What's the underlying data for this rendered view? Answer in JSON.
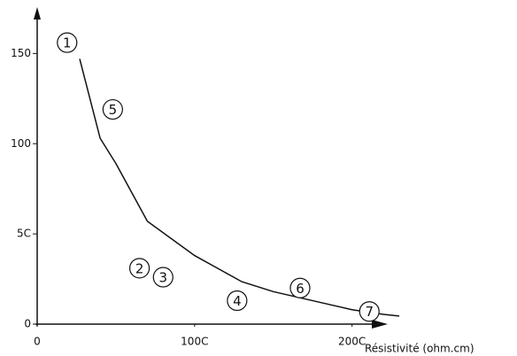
{
  "chart_data": {
    "type": "line",
    "x_label": "Résistivité (ohm.cm)",
    "xlim": [
      0,
      2300
    ],
    "ylim": [
      0,
      160
    ],
    "xticks": [
      0,
      {
        "value": 1000,
        "label": "100C"
      },
      {
        "value": 2000,
        "label": "200C"
      }
    ],
    "yticks": [
      0,
      {
        "value": 50,
        "label": "5C"
      },
      100,
      150
    ],
    "color": "#111111",
    "x": [
      270,
      400,
      500,
      700,
      1000,
      1300,
      1500,
      1800,
      2000,
      2200,
      2300
    ],
    "values": [
      147,
      103,
      89,
      57,
      38,
      23.5,
      18,
      12,
      8,
      5.4,
      4.5
    ],
    "points": [
      {
        "label": "1",
        "x": 190,
        "y": 156
      },
      {
        "label": "5",
        "x": 480,
        "y": 119
      },
      {
        "label": "2",
        "x": 650,
        "y": 31
      },
      {
        "label": "3",
        "x": 800,
        "y": 26
      },
      {
        "label": "4",
        "x": 1270,
        "y": 13
      },
      {
        "label": "6",
        "x": 1670,
        "y": 20
      },
      {
        "label": "7",
        "x": 2110,
        "y": 7
      }
    ]
  }
}
